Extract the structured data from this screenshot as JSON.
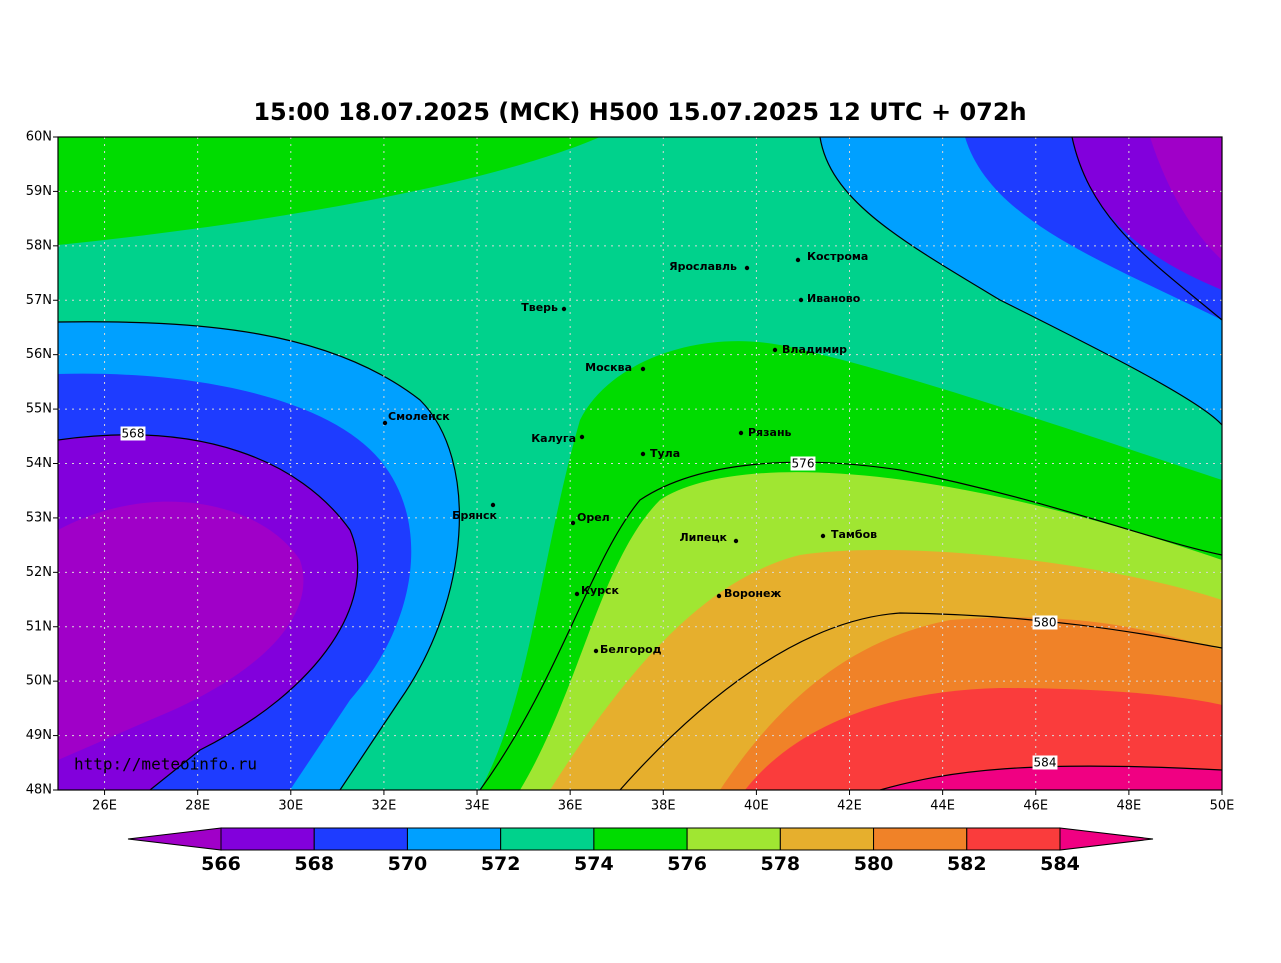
{
  "title": "15:00 18.07.2025 (MCK) H500  15.07.2025 12 UTC + 072h",
  "lat_ticks": [
    "60N",
    "59N",
    "58N",
    "57N",
    "56N",
    "55N",
    "54N",
    "53N",
    "52N",
    "51N",
    "50N",
    "49N",
    "48N"
  ],
  "lon_ticks": [
    "26E",
    "28E",
    "30E",
    "32E",
    "34E",
    "36E",
    "38E",
    "40E",
    "42E",
    "44E",
    "46E",
    "48E",
    "50E"
  ],
  "cities": [
    "Ярославль",
    "Кострома",
    "Тверь",
    "Иваново",
    "Владимир",
    "Москва",
    "Смоленск",
    "Калуга",
    "Рязань",
    "Тула",
    "Брянск",
    "Орел",
    "Липецк",
    "Тамбов",
    "Курск",
    "Воронеж",
    "Белгород"
  ],
  "contour_labels": [
    "568",
    "576",
    "580",
    "584"
  ],
  "colorbar": {
    "labels": [
      "566",
      "568",
      "570",
      "572",
      "574",
      "576",
      "578",
      "580",
      "582",
      "584"
    ],
    "colors": [
      "#a000c8",
      "#8200dc",
      "#1e3cff",
      "#00a0ff",
      "#00d28c",
      "#00dc00",
      "#a0e632",
      "#e6af2d",
      "#f08228",
      "#fa3c3c",
      "#f00082"
    ]
  },
  "credit": "http://meteoinfo.ru"
}
